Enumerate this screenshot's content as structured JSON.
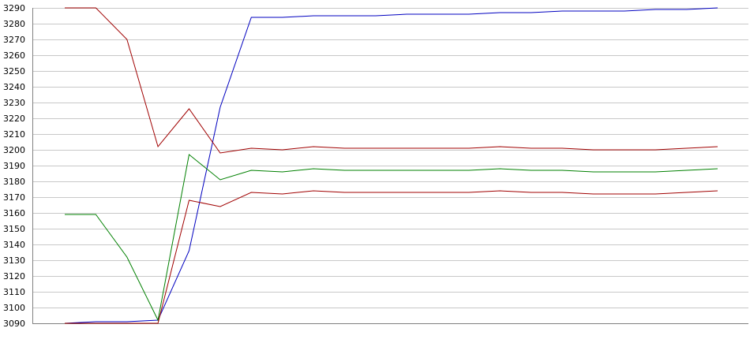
{
  "chart_data": {
    "type": "line",
    "title": "",
    "xlabel": "",
    "ylabel": "",
    "ylim": [
      3090,
      3290
    ],
    "yticks": [
      3090,
      3100,
      3110,
      3120,
      3130,
      3140,
      3150,
      3160,
      3170,
      3180,
      3190,
      3200,
      3210,
      3220,
      3230,
      3240,
      3250,
      3260,
      3270,
      3280,
      3290
    ],
    "ytick_labels": [
      "3090",
      "3100",
      "3110",
      "3120",
      "3130",
      "3140",
      "3150",
      "3160",
      "3170",
      "3180",
      "3190",
      "3200",
      "3210",
      "3220",
      "3230",
      "3240",
      "3250",
      "3260",
      "3270",
      "3280",
      "3290"
    ],
    "grid": true,
    "x": [
      1,
      2,
      3,
      4,
      5,
      6,
      7,
      8,
      9,
      10,
      11,
      12,
      13,
      14,
      15,
      16,
      17,
      18,
      19,
      20,
      21,
      22
    ],
    "series": [
      {
        "color": "#0000c0",
        "values": [
          3090,
          3091,
          3091,
          3092,
          3136,
          3227,
          3284,
          3284,
          3285,
          3285,
          3285,
          3286,
          3286,
          3286,
          3287,
          3287,
          3288,
          3288,
          3288,
          3289,
          3289,
          3290
        ]
      },
      {
        "color": "#a00000",
        "values": [
          3290,
          3290,
          3270,
          3202,
          3226,
          3198,
          3201,
          3200,
          3202,
          3201,
          3201,
          3201,
          3201,
          3201,
          3202,
          3201,
          3201,
          3200,
          3200,
          3200,
          3201,
          3202
        ]
      },
      {
        "color": "#008000",
        "values": [
          3159,
          3159,
          3132,
          3092,
          3197,
          3181,
          3187,
          3186,
          3188,
          3187,
          3187,
          3187,
          3187,
          3187,
          3188,
          3187,
          3187,
          3186,
          3186,
          3186,
          3187,
          3188
        ]
      },
      {
        "color": "#a00000",
        "values": [
          3090,
          3090,
          3090,
          3090,
          3168,
          3164,
          3173,
          3172,
          3174,
          3173,
          3173,
          3173,
          3173,
          3173,
          3174,
          3173,
          3173,
          3172,
          3172,
          3172,
          3173,
          3174
        ]
      }
    ]
  }
}
